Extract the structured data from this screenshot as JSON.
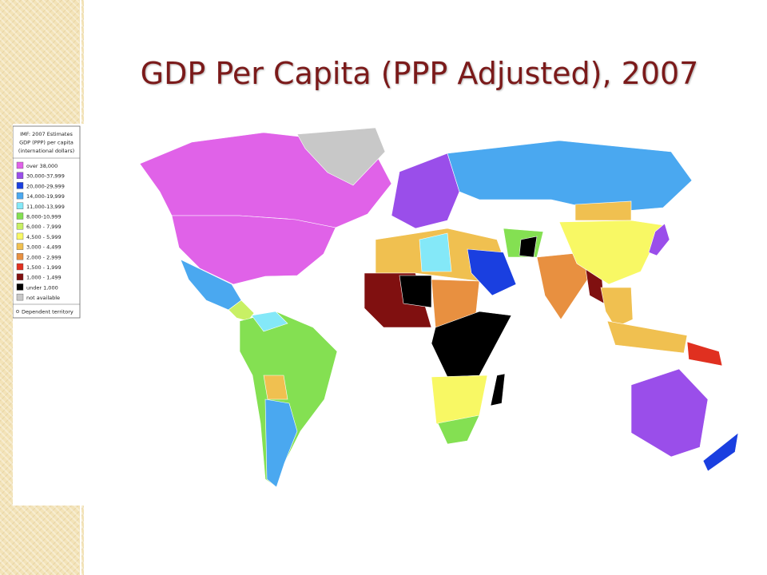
{
  "title": "GDP Per Capita (PPP Adjusted), 2007",
  "legend": {
    "heading": [
      "IMF: 2007 Estimates",
      "GDP (PPP) per capita",
      "(international dollars)"
    ],
    "items": [
      {
        "label": "over  38,000",
        "color": "#e062e8"
      },
      {
        "label": "30,000-37,999",
        "color": "#9a4eea"
      },
      {
        "label": "20,000-29,999",
        "color": "#1a3fe0"
      },
      {
        "label": "14,000-19,999",
        "color": "#4aa8f0"
      },
      {
        "label": "11,000-13,999",
        "color": "#84e8f8"
      },
      {
        "label": "8,000-10,999",
        "color": "#84e052"
      },
      {
        "label": "6,000 - 7,999",
        "color": "#c8f064"
      },
      {
        "label": "4,500 - 5,999",
        "color": "#f8f864"
      },
      {
        "label": "3,000 - 4,499",
        "color": "#f0c050"
      },
      {
        "label": "2,000 - 2,999",
        "color": "#e89040"
      },
      {
        "label": "1,500 - 1,999",
        "color": "#e03020"
      },
      {
        "label": "1,000 - 1,499",
        "color": "#801010"
      },
      {
        "label": "under  1,000",
        "color": "#000000"
      },
      {
        "label": "not available",
        "color": "#c8c8c8"
      }
    ],
    "footnote": "Dependent territory"
  }
}
